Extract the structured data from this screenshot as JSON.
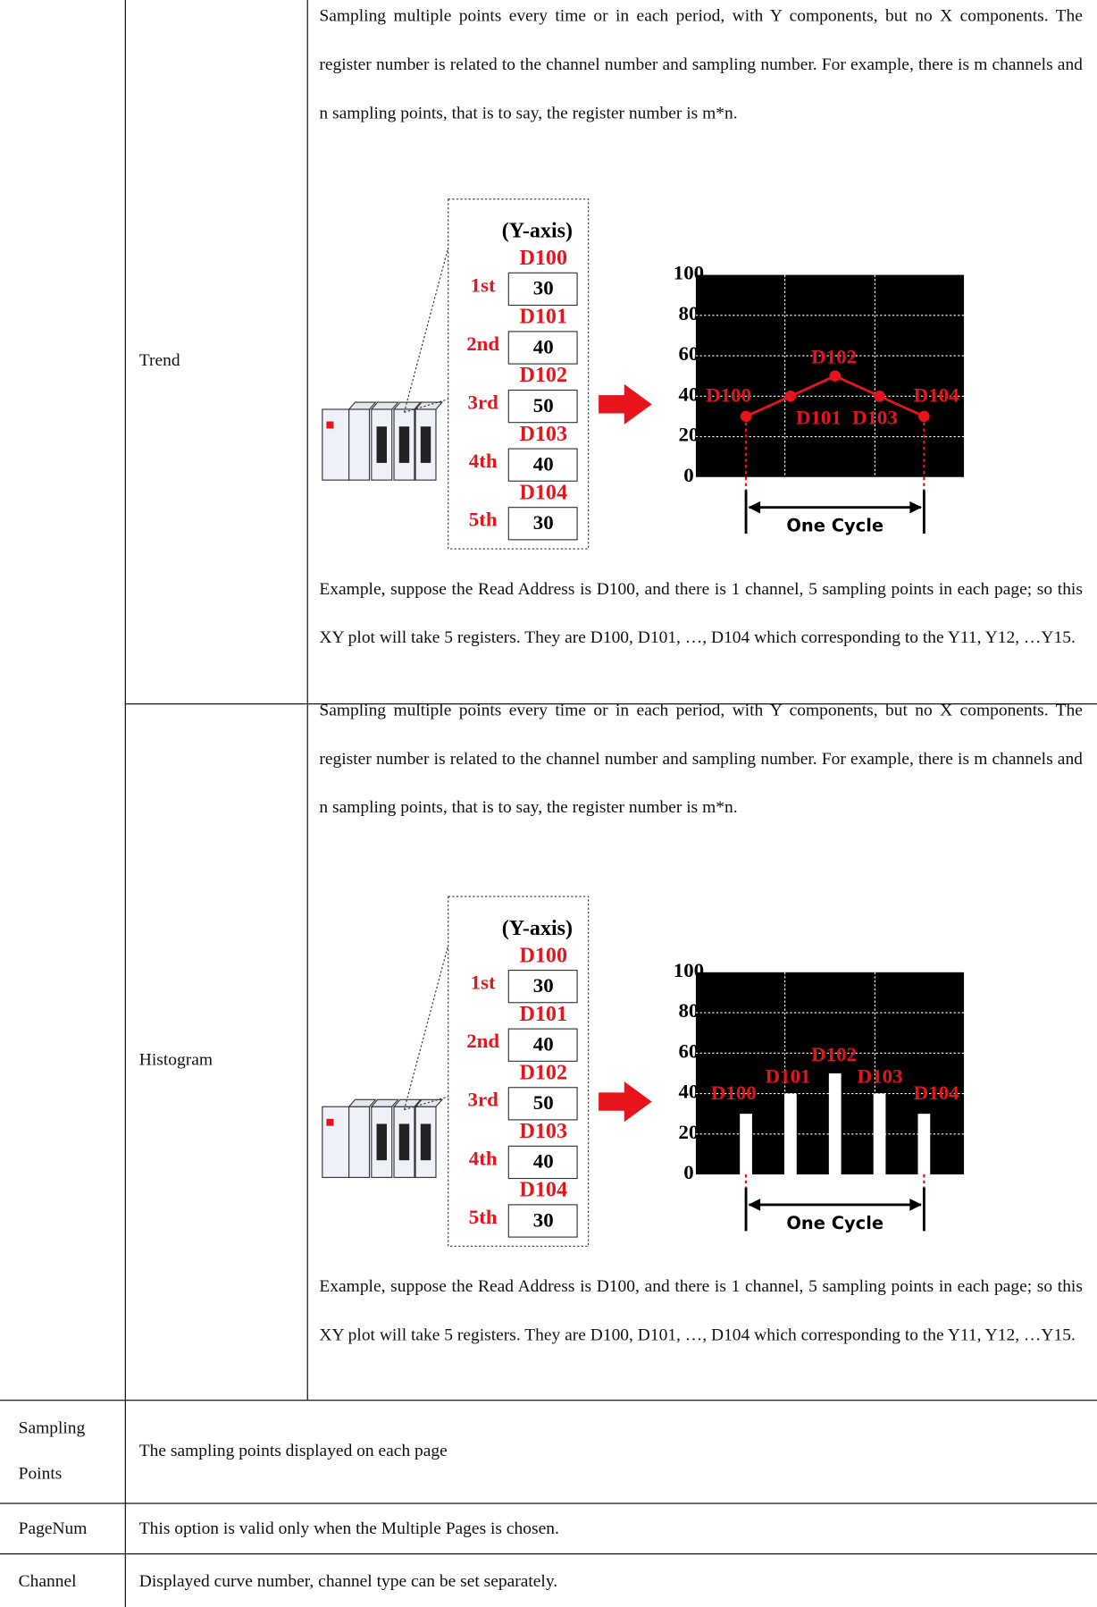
{
  "table": {
    "type_rows": [
      {
        "name": "Trend",
        "paragraph": "Sampling multiple points every time or in each period, with Y components, but no X components. The register number is related to the channel number and sampling number. For example, there is m channels and n sampling points, that is to say, the register number is m*n.",
        "diagram": {
          "axis_title": "(Y-axis)",
          "registers": [
            "D100",
            "D101",
            "D102",
            "D103",
            "D104"
          ],
          "ordinals": [
            "1st",
            "2nd",
            "3rd",
            "4th",
            "5th"
          ],
          "values": [
            30,
            40,
            50,
            40,
            30
          ],
          "ticks": [
            100,
            80,
            60,
            40,
            20,
            0
          ],
          "cycle_label": "One Cycle"
        },
        "example": "Example, suppose the Read Address is D100, and there is 1 channel, 5 sampling points in each page; so this XY plot will take 5 registers. They are D100, D101, …, D104 which corresponding to the Y11, Y12, …Y15."
      },
      {
        "name": "Histogram",
        "paragraph": "Sampling multiple points every time or in each period, with Y components, but no X components. The register number is related to the channel number and sampling number. For example, there is m channels and n sampling points, that is to say, the register number is m*n.",
        "diagram": {
          "axis_title": "(Y-axis)",
          "registers": [
            "D100",
            "D101",
            "D102",
            "D103",
            "D104"
          ],
          "ordinals": [
            "1st",
            "2nd",
            "3rd",
            "4th",
            "5th"
          ],
          "values": [
            30,
            40,
            50,
            40,
            30
          ],
          "ticks": [
            100,
            80,
            60,
            40,
            20,
            0
          ],
          "cycle_label": "One Cycle"
        },
        "example": "Example, suppose the Read Address is D100, and there is 1 channel, 5 sampling points in each page; so this XY plot will take 5 registers. They are D100, D101, …, D104 which corresponding to the Y11, Y12, …Y15."
      }
    ],
    "rows": [
      {
        "label": "Sampling Points",
        "text": "The sampling points displayed on each page"
      },
      {
        "label": "PageNum",
        "text": "This option is valid only when the Multiple Pages is chosen."
      },
      {
        "label": "Channel",
        "text": "Displayed curve number, channel type can be set separately."
      }
    ]
  }
}
